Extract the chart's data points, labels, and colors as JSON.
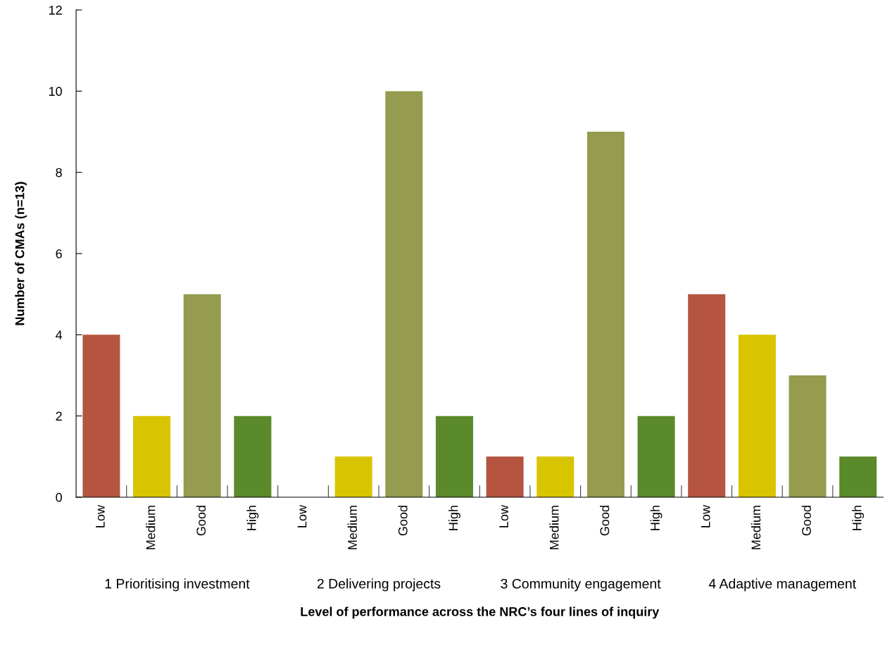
{
  "chart_data": {
    "type": "bar",
    "xlabel": "Level of performance across the NRC’s four lines of inquiry",
    "ylabel": "Number of CMAs (n=13)",
    "categories": [
      "Low",
      "Medium",
      "Good",
      "High",
      "Low",
      "Medium",
      "Good",
      "High",
      "Low",
      "Medium",
      "Good",
      "High",
      "Low",
      "Medium",
      "Good",
      "High"
    ],
    "values": [
      4,
      2,
      5,
      2,
      0,
      1,
      10,
      2,
      1,
      1,
      9,
      2,
      5,
      4,
      3,
      1
    ],
    "colors": [
      "#b5553f",
      "#d9c400",
      "#959b4f",
      "#5b8a2a",
      "#b5553f",
      "#d9c400",
      "#959b4f",
      "#5b8a2a",
      "#b5553f",
      "#d9c400",
      "#959b4f",
      "#5b8a2a",
      "#b5553f",
      "#d9c400",
      "#959b4f",
      "#5b8a2a"
    ],
    "ylim": [
      0,
      12
    ],
    "yticks": [
      0,
      2,
      4,
      6,
      8,
      10,
      12
    ],
    "grid": false,
    "legend": false,
    "annotations": [
      "1 Prioritising investment",
      "2 Delivering projects",
      "3 Community engagement",
      "4 Adaptive management"
    ]
  }
}
